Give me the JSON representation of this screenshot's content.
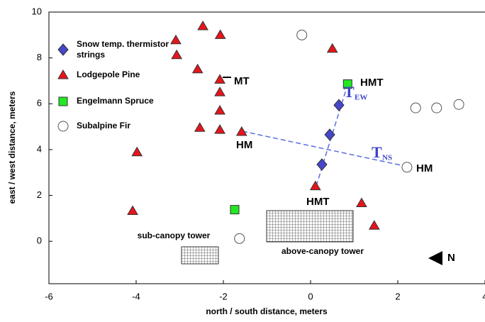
{
  "chart_data": {
    "type": "scatter",
    "x_label": "north / south distance, meters",
    "y_label": "east / west distance, meters",
    "xlim": [
      -6,
      4
    ],
    "ylim": [
      -1.85,
      10
    ],
    "xticks": [
      -6,
      -4,
      -2,
      0,
      2,
      4
    ],
    "yticks": [
      0,
      2,
      4,
      6,
      8,
      10
    ],
    "series": [
      {
        "name": "Snow temp. thermistor strings",
        "marker": "diamond",
        "color": "#4646c8",
        "x": [
          0.65,
          0.44,
          0.26
        ],
        "y": [
          5.94,
          4.65,
          3.35
        ]
      },
      {
        "name": "Lodgepole Pine",
        "marker": "triangle",
        "color": "#e8141b",
        "x": [
          -3.09,
          -2.47,
          -2.07,
          -3.07,
          -2.59,
          -2.08,
          -2.08,
          -2.08,
          -2.54,
          -2.08,
          -1.58,
          -3.98,
          -4.08,
          0.11,
          0.5,
          1.17,
          1.46
        ],
        "y": [
          8.77,
          9.38,
          9.0,
          8.12,
          7.5,
          7.05,
          6.5,
          5.7,
          4.95,
          4.86,
          4.77,
          3.88,
          1.32,
          2.4,
          8.4,
          1.66,
          0.68
        ]
      },
      {
        "name": "Engelmann Spruce",
        "marker": "square",
        "color": "#22e822",
        "x": [
          0.85,
          -1.74
        ],
        "y": [
          6.86,
          1.38
        ]
      },
      {
        "name": "Subalpine Fir",
        "marker": "circle",
        "color": "#ffffff",
        "x": [
          -0.2,
          -1.63,
          2.21,
          2.41,
          2.89,
          3.4
        ],
        "y": [
          9.0,
          0.12,
          3.23,
          5.82,
          5.82,
          5.97
        ]
      }
    ],
    "annotations": [
      "MT",
      "HMT",
      "HM",
      "HM",
      "HMT",
      "sub-canopy tower",
      "above-canopy tower",
      "N"
    ],
    "transects": [
      {
        "text": "T",
        "sub": "EW"
      },
      {
        "text": "T",
        "sub": "NS"
      }
    ]
  }
}
